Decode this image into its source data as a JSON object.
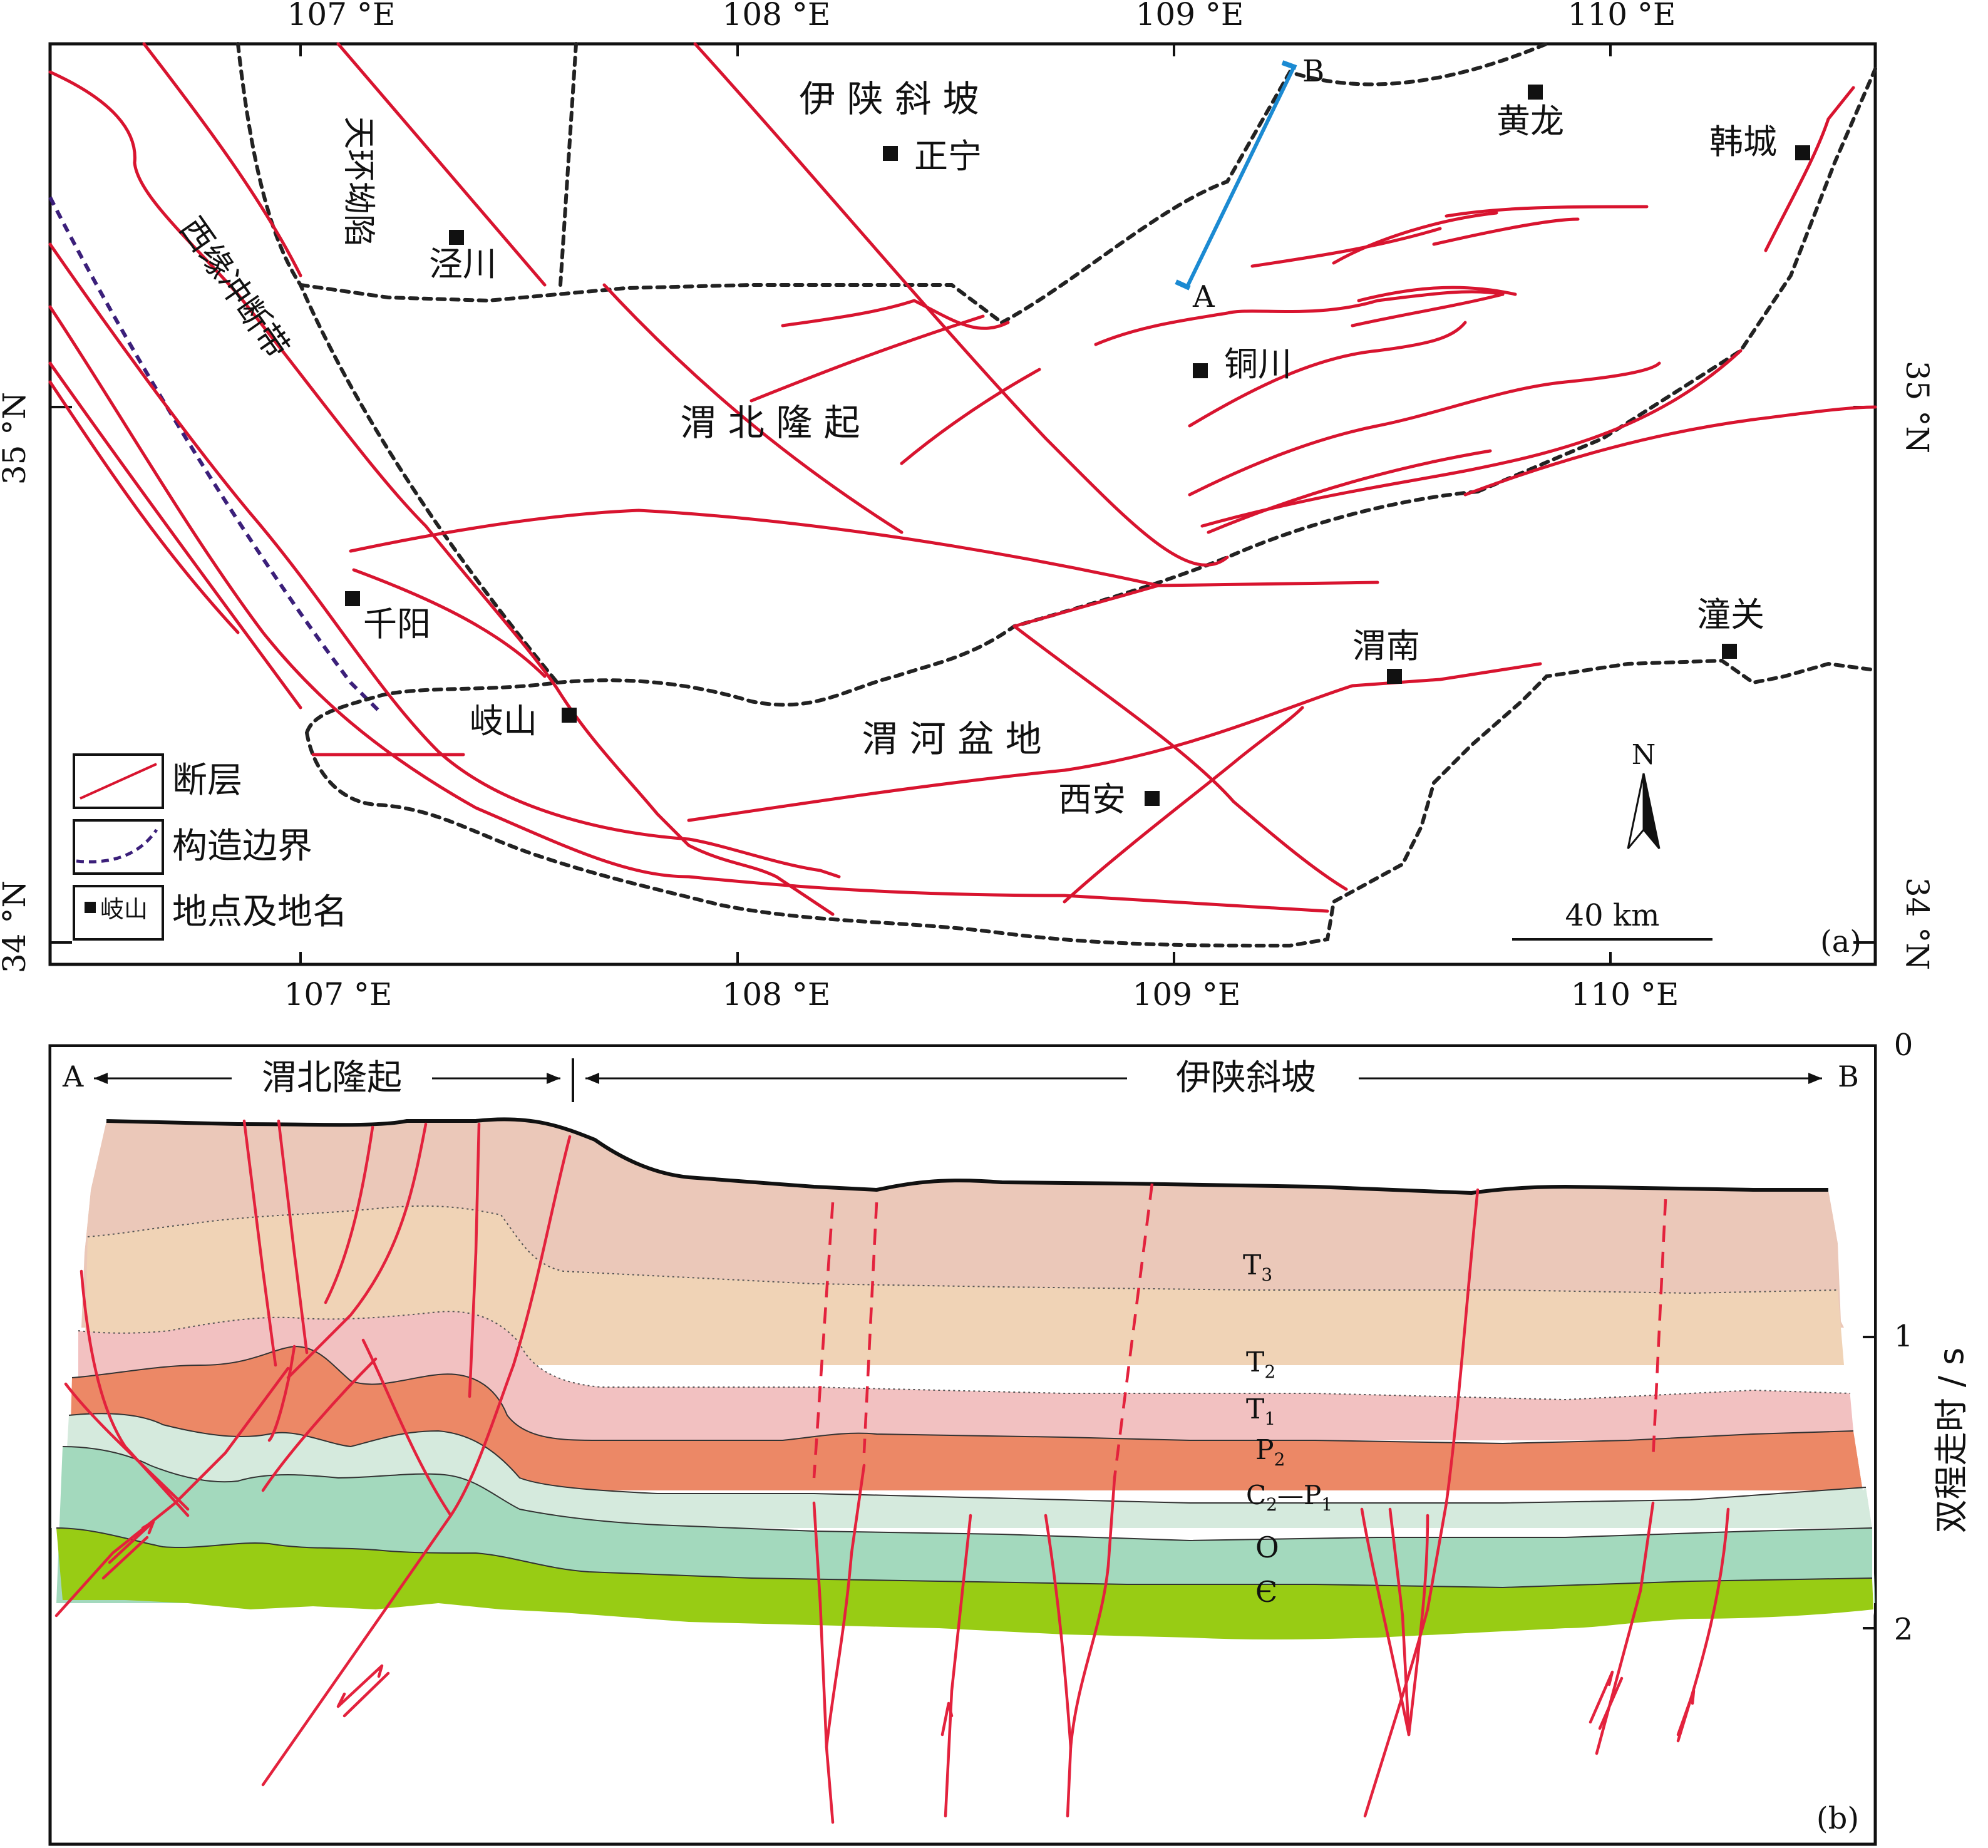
{
  "map": {
    "panel_label": "(a)",
    "lon_labels": [
      "107 °E",
      "108 °E",
      "109 °E",
      "110 °E"
    ],
    "lat_labels": [
      "35 °N",
      "34 °N"
    ],
    "regions": {
      "yishan_slope": "伊 陕 斜 坡",
      "tianhuan_depression": "天环坳陷",
      "western_thrust_belt": "西缘冲断带",
      "weibei_uplift": "渭 北 隆 起",
      "weihe_basin": "渭 河 盆 地"
    },
    "places": {
      "zhengning": "正宁",
      "huanglong": "黄龙",
      "hancheng": "韩城",
      "jingchuan": "泾川",
      "tongchuan": "铜川",
      "qianyang": "千阳",
      "weinan": "渭南",
      "tongguan": "潼关",
      "qishan": "岐山",
      "xian": "西安"
    },
    "profile_points": {
      "a": "A",
      "b": "B"
    },
    "legend": {
      "fault": "断层",
      "boundary": "构造边界",
      "place_sample": "岐山",
      "place": "地点及地名"
    },
    "scale_label": "40 km",
    "north_label": "N"
  },
  "section": {
    "panel_label": "(b)",
    "left_end": "A",
    "right_end": "B",
    "weibei_uplift": "渭北隆起",
    "yishan_slope": "伊陕斜坡",
    "axis_label": "双程走时 / s",
    "axis_ticks": [
      "0",
      "1",
      "2"
    ],
    "strata": {
      "t3": {
        "base": "T",
        "sub": "3"
      },
      "t2": {
        "base": "T",
        "sub": "2"
      },
      "t1": {
        "base": "T",
        "sub": "1"
      },
      "p2": {
        "base": "P",
        "sub": "2"
      },
      "c2p1": {
        "a": "C",
        "a_sub": "2",
        "dash": "—",
        "b": "P",
        "b_sub": "1"
      },
      "o": "O",
      "cam": "Є"
    },
    "colors": {
      "t3": "#ebc8b9",
      "t2": "#f0d3b6",
      "t1": "#f2c1c1",
      "p2": "#ec8866",
      "c2p1": "#d5eadd",
      "o": "#a3d9bd",
      "cam": "#98cc14"
    }
  }
}
